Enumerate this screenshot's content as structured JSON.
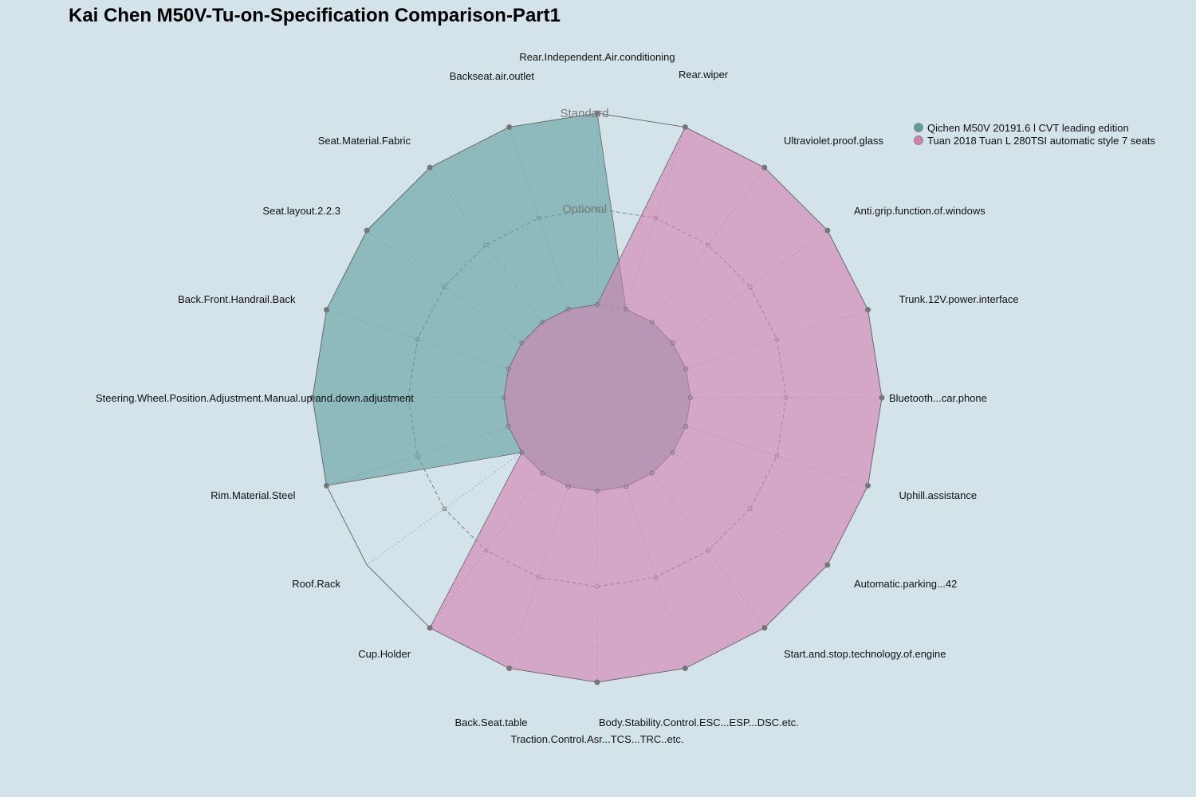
{
  "chart_data": {
    "type": "radar",
    "title": "Kai Chen M50V-Tu-on-Specification Comparison-Part1",
    "levels": [
      "",
      "Optional",
      "Standard"
    ],
    "categories": [
      "Rear.Independent.Air.conditioning",
      "Rear.wiper",
      "Ultraviolet.proof.glass",
      "Anti.grip.function.of.windows",
      "Trunk.12V.power.interface",
      "Bluetooth...car.phone",
      "Uphill.assistance",
      "Automatic.parking...42",
      "Start.and.stop.technology.of.engine",
      "Body.Stability.Control.ESC...ESP...DSC.etc.",
      "Traction.Control.Asr...TCS...TRC..etc.",
      "Back.Seat.table",
      "Cup.Holder",
      "Roof.Rack",
      "Rim.Material.Steel",
      "Steering.Wheel.Position.Adjustment.Manual.up.and.down.adjustment",
      "Back.Front.Handrail.Back",
      "Seat.layout.2.2.3",
      "Seat.Material.Fabric",
      "Backseat.air.outlet"
    ],
    "series": [
      {
        "name": "Qichen M50V 20191.6 l CVT leading edition",
        "color": "#5f9ea0",
        "values": [
          2,
          0,
          0,
          0,
          0,
          0,
          0,
          0,
          0,
          0,
          0,
          0,
          0,
          0,
          2,
          2,
          2,
          2,
          2,
          2
        ]
      },
      {
        "name": "Tuan 2018 Tuan L 280TSI automatic style 7 seats",
        "color": "#d47fb0",
        "values": [
          0,
          2,
          2,
          2,
          2,
          2,
          2,
          2,
          2,
          2,
          2,
          2,
          2,
          0,
          0,
          0,
          0,
          0,
          0,
          0
        ]
      }
    ],
    "legend_position": "top-right"
  }
}
